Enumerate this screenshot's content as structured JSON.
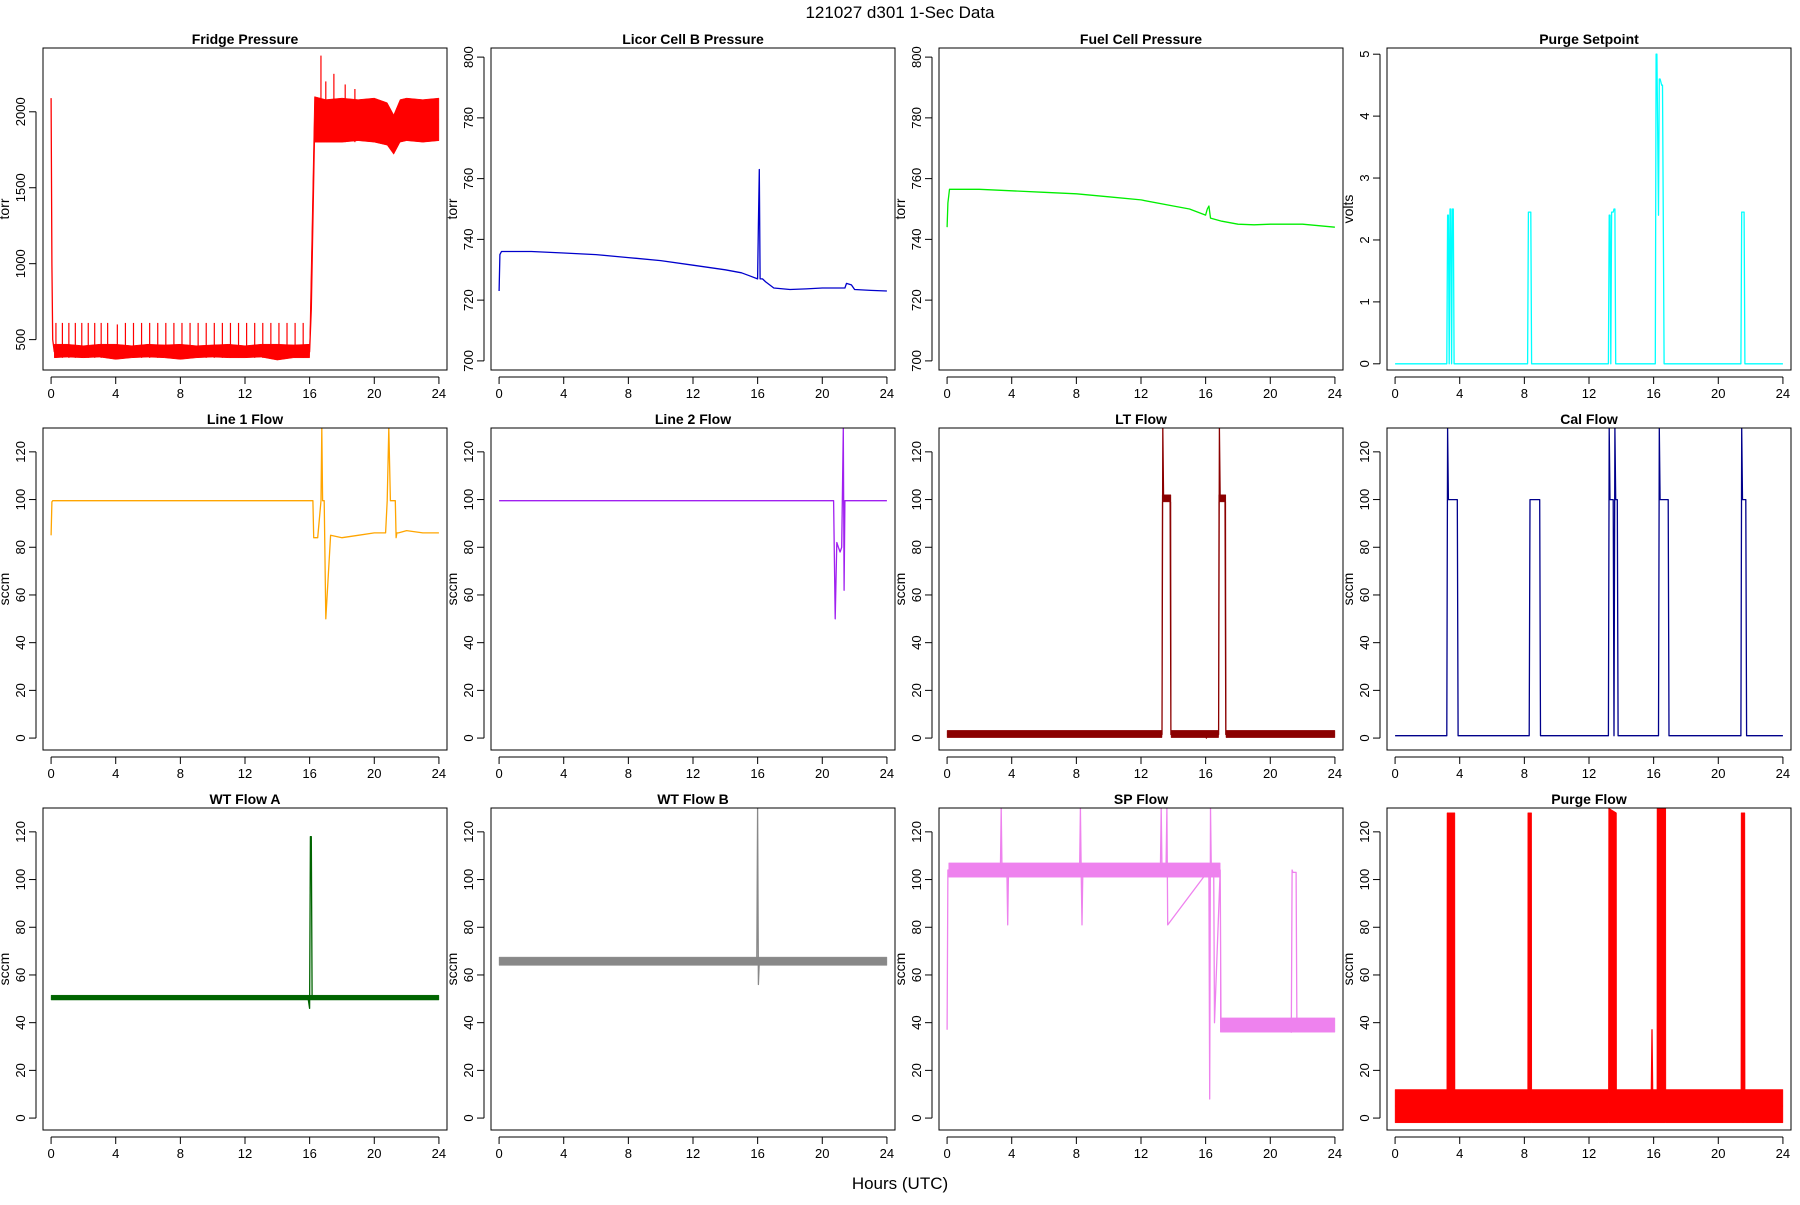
{
  "page": {
    "title": "121027   d301   1-Sec Data",
    "xlabel": "Hours (UTC)"
  },
  "chart_data": [
    {
      "type": "line",
      "title": "Fridge Pressure",
      "ylabel": "torr",
      "color": "#ff0000",
      "xlim": [
        -0.5,
        24.5
      ],
      "ylim": [
        300,
        2420
      ],
      "xticks": [
        0,
        4,
        8,
        12,
        16,
        20,
        24
      ],
      "yticks": [
        500,
        1000,
        1500,
        2000
      ],
      "x": [
        0,
        0.05,
        0.1,
        0.2,
        1,
        2,
        3,
        3.5,
        4,
        5,
        6,
        7,
        8,
        8.5,
        9,
        10,
        11,
        12,
        13,
        13.5,
        14,
        15,
        16,
        16.1,
        16.3,
        16.6,
        17,
        18,
        19,
        20,
        20.5,
        21,
        21.5,
        22,
        23,
        24
      ],
      "y": [
        2090,
        1000,
        500,
        420,
        420,
        415,
        420,
        380,
        410,
        420,
        420,
        418,
        400,
        380,
        410,
        420,
        418,
        420,
        420,
        380,
        410,
        420,
        420,
        700,
        1850,
        2000,
        1930,
        1950,
        1940,
        1950,
        1900,
        1800,
        1850,
        1950,
        1960,
        1950
      ],
      "band": {
        "x": [
          0.2,
          1,
          2,
          3,
          4,
          5,
          6,
          7,
          8,
          9,
          10,
          11,
          12,
          13,
          14,
          15,
          16,
          16.3,
          17,
          18,
          19,
          20,
          20.8,
          21.2,
          21.6,
          22,
          23,
          24
        ],
        "lo": [
          380,
          385,
          380,
          385,
          370,
          380,
          385,
          380,
          370,
          380,
          385,
          380,
          380,
          385,
          365,
          380,
          380,
          1800,
          1800,
          1800,
          1810,
          1800,
          1780,
          1720,
          1800,
          1810,
          1800,
          1810
        ],
        "hi": [
          470,
          470,
          460,
          470,
          470,
          460,
          470,
          465,
          470,
          460,
          465,
          470,
          460,
          470,
          470,
          465,
          470,
          2100,
          2080,
          2090,
          2080,
          2090,
          2060,
          1980,
          2080,
          2090,
          2080,
          2090
        ]
      },
      "spikes": [
        [
          0.3,
          380,
          610
        ],
        [
          0.7,
          380,
          610
        ],
        [
          1.1,
          380,
          610
        ],
        [
          1.5,
          380,
          610
        ],
        [
          1.9,
          380,
          610
        ],
        [
          2.3,
          380,
          610
        ],
        [
          2.7,
          380,
          610
        ],
        [
          3.1,
          380,
          610
        ],
        [
          3.5,
          380,
          610
        ],
        [
          4.1,
          380,
          600
        ],
        [
          4.6,
          380,
          610
        ],
        [
          5.1,
          380,
          610
        ],
        [
          5.6,
          380,
          610
        ],
        [
          6.1,
          380,
          610
        ],
        [
          6.6,
          380,
          610
        ],
        [
          7.1,
          380,
          610
        ],
        [
          7.6,
          380,
          610
        ],
        [
          8.1,
          380,
          610
        ],
        [
          8.6,
          380,
          610
        ],
        [
          9.1,
          380,
          610
        ],
        [
          9.6,
          380,
          610
        ],
        [
          10.1,
          380,
          610
        ],
        [
          10.6,
          380,
          610
        ],
        [
          11.1,
          380,
          610
        ],
        [
          11.6,
          380,
          610
        ],
        [
          12.1,
          380,
          610
        ],
        [
          12.6,
          380,
          610
        ],
        [
          13.1,
          380,
          610
        ],
        [
          13.6,
          380,
          610
        ],
        [
          14.1,
          380,
          610
        ],
        [
          14.6,
          380,
          610
        ],
        [
          15.1,
          380,
          610
        ],
        [
          15.6,
          380,
          610
        ],
        [
          16.7,
          1800,
          2370
        ],
        [
          17.0,
          1800,
          2200
        ],
        [
          17.5,
          1800,
          2250
        ],
        [
          18.2,
          1800,
          2180
        ],
        [
          18.8,
          1800,
          2150
        ]
      ]
    },
    {
      "type": "line",
      "title": "Licor Cell B Pressure",
      "ylabel": "torr",
      "color": "#0000cc",
      "xlim": [
        -0.5,
        24.5
      ],
      "ylim": [
        697,
        803
      ],
      "xticks": [
        0,
        4,
        8,
        12,
        16,
        20,
        24
      ],
      "yticks": [
        700,
        720,
        740,
        760,
        780,
        800
      ],
      "x": [
        0,
        0.05,
        0.15,
        2,
        4,
        6,
        8,
        10,
        12,
        14,
        15,
        15.5,
        16,
        16.05,
        16.1,
        16.15,
        16.3,
        16.5,
        17,
        18,
        19,
        20,
        21,
        21.4,
        21.5,
        21.8,
        22,
        23,
        24
      ],
      "y": [
        723,
        735,
        736,
        736,
        735.5,
        735,
        734,
        733,
        731.5,
        730,
        729,
        728,
        727,
        745,
        763,
        727,
        727,
        726,
        724,
        723.5,
        723.7,
        724,
        724,
        724,
        725.5,
        725,
        723.5,
        723.2,
        723
      ]
    },
    {
      "type": "line",
      "title": "Fuel Cell Pressure",
      "ylabel": "torr",
      "color": "#00ee00",
      "xlim": [
        -0.5,
        24.5
      ],
      "ylim": [
        697,
        803
      ],
      "xticks": [
        0,
        4,
        8,
        12,
        16,
        20,
        24
      ],
      "yticks": [
        700,
        720,
        740,
        760,
        780,
        800
      ],
      "x": [
        0,
        0.05,
        0.15,
        2,
        4,
        6,
        8,
        10,
        12,
        14,
        15,
        16,
        16.1,
        16.2,
        16.3,
        17,
        18,
        19,
        20,
        21,
        22,
        23,
        24
      ],
      "y": [
        744,
        752,
        756.5,
        756.5,
        756,
        755.5,
        755,
        754,
        753,
        751,
        750,
        748,
        750,
        751,
        747,
        746,
        745,
        744.8,
        745,
        745,
        745,
        744.5,
        744
      ]
    },
    {
      "type": "line",
      "title": "Purge Setpoint",
      "ylabel": "volts",
      "color": "#00ffff",
      "xlim": [
        -0.5,
        24.5
      ],
      "ylim": [
        -0.1,
        5.1
      ],
      "xticks": [
        0,
        4,
        8,
        12,
        16,
        20,
        24
      ],
      "yticks": [
        0,
        1,
        2,
        3,
        4,
        5
      ],
      "x": [
        0,
        3.2,
        3.25,
        3.3,
        3.35,
        3.4,
        3.45,
        3.5,
        3.55,
        3.6,
        3.65,
        8.2,
        8.25,
        8.35,
        8.4,
        8.45,
        13.2,
        13.25,
        13.3,
        13.35,
        13.4,
        13.5,
        13.55,
        13.6,
        13.65,
        16.1,
        16.15,
        16.2,
        16.3,
        16.35,
        16.4,
        16.5,
        16.55,
        16.6,
        16.65,
        21.4,
        21.45,
        21.55,
        21.6,
        21.65,
        24
      ],
      "y": [
        0,
        0,
        2.4,
        2.4,
        0,
        2.5,
        2.5,
        0,
        2.5,
        2.5,
        0,
        0,
        2.45,
        2.45,
        2.45,
        0,
        0,
        2.4,
        2.4,
        0,
        2.45,
        2.45,
        2.5,
        2.5,
        0,
        0,
        5,
        5,
        2.4,
        4.6,
        4.6,
        4.5,
        4.5,
        2.3,
        0,
        0,
        2.45,
        2.45,
        2.45,
        0,
        0
      ]
    },
    {
      "type": "line",
      "title": "Line 1 Flow",
      "ylabel": "sccm",
      "color": "#ffa500",
      "xlim": [
        -0.5,
        24.5
      ],
      "ylim": [
        -5,
        130
      ],
      "xticks": [
        0,
        4,
        8,
        12,
        16,
        20,
        24
      ],
      "yticks": [
        0,
        20,
        40,
        60,
        80,
        100,
        120
      ],
      "x": [
        0,
        0.05,
        0.1,
        4,
        8,
        12,
        16,
        16.2,
        16.25,
        16.5,
        16.7,
        16.75,
        16.8,
        16.9,
        17,
        17.3,
        18,
        19,
        20,
        20.7,
        20.8,
        20.9,
        21,
        21.3,
        21.35,
        21.4,
        21.5,
        22,
        23,
        24
      ],
      "y": [
        85,
        99,
        99.5,
        99.5,
        99.5,
        99.5,
        99.5,
        99.5,
        84,
        84,
        99.5,
        130,
        99.5,
        99.5,
        50,
        85,
        84,
        85,
        86,
        86,
        99.5,
        130,
        99.5,
        99.5,
        84,
        86,
        86,
        87,
        86,
        86
      ]
    },
    {
      "type": "line",
      "title": "Line 2 Flow",
      "ylabel": "sccm",
      "color": "#a020f0",
      "xlim": [
        -0.5,
        24.5
      ],
      "ylim": [
        -5,
        130
      ],
      "xticks": [
        0,
        4,
        8,
        12,
        16,
        20,
        24
      ],
      "yticks": [
        0,
        20,
        40,
        60,
        80,
        100,
        120
      ],
      "x": [
        0,
        4,
        8,
        12,
        16,
        18,
        20,
        20.7,
        20.8,
        20.9,
        21.0,
        21.1,
        21.2,
        21.3,
        21.35,
        21.4,
        21.5,
        22,
        23,
        24
      ],
      "y": [
        99.5,
        99.5,
        99.5,
        99.5,
        99.5,
        99.5,
        99.5,
        99.5,
        50,
        82,
        80,
        78,
        80,
        130,
        62,
        99.5,
        99.5,
        99.5,
        99.5,
        99.5
      ]
    },
    {
      "type": "line",
      "title": "LT Flow",
      "ylabel": "sccm",
      "color": "#8b0000",
      "xlim": [
        -0.5,
        24.5
      ],
      "ylim": [
        -5,
        130
      ],
      "xticks": [
        0,
        4,
        8,
        12,
        16,
        20,
        24
      ],
      "yticks": [
        0,
        20,
        40,
        60,
        80,
        100,
        120
      ],
      "x": [
        0,
        13.3,
        13.35,
        13.4,
        13.45,
        13.8,
        13.85,
        16.0,
        16.05,
        16.1,
        16.2,
        16.8,
        16.85,
        16.9,
        16.95,
        17.2,
        17.25,
        24
      ],
      "y": [
        1.5,
        1.5,
        130,
        100,
        101,
        101,
        1.5,
        1.5,
        0,
        1.5,
        1.5,
        1.5,
        130,
        100,
        101,
        101,
        1.5,
        1.5
      ],
      "band": {
        "x": [
          0,
          13.3,
          13.31,
          13.85,
          13.86,
          16.8,
          16.81,
          17.25,
          17.26,
          24
        ],
        "lo": [
          0.2,
          0.2,
          99,
          99,
          0.2,
          0.2,
          99,
          99,
          0.2,
          0.2
        ],
        "hi": [
          3.2,
          3.2,
          102,
          102,
          3.2,
          3.2,
          102,
          102,
          3.2,
          3.2
        ]
      }
    },
    {
      "type": "line",
      "title": "Cal Flow",
      "ylabel": "sccm",
      "color": "#00008b",
      "xlim": [
        -0.5,
        24.5
      ],
      "ylim": [
        -5,
        130
      ],
      "xticks": [
        0,
        4,
        8,
        12,
        16,
        20,
        24
      ],
      "yticks": [
        0,
        20,
        40,
        60,
        80,
        100,
        120
      ],
      "x": [
        0,
        3.2,
        3.25,
        3.3,
        3.4,
        3.85,
        3.9,
        8.3,
        8.35,
        8.4,
        8.95,
        9.0,
        13.2,
        13.25,
        13.3,
        13.5,
        13.55,
        13.6,
        13.65,
        13.7,
        13.75,
        13.8,
        16.3,
        16.35,
        16.4,
        16.9,
        16.95,
        21.4,
        21.45,
        21.5,
        21.7,
        21.75,
        24
      ],
      "y": [
        1,
        1,
        130,
        100,
        100,
        100,
        1,
        1,
        100,
        100,
        100,
        1,
        1,
        130,
        100,
        100,
        1,
        130,
        100,
        100,
        100,
        1,
        1,
        130,
        100,
        100,
        1,
        1,
        130,
        100,
        100,
        1,
        1
      ]
    },
    {
      "type": "line",
      "title": "WT Flow A",
      "ylabel": "sccm",
      "color": "#006400",
      "xlim": [
        -0.5,
        24.5
      ],
      "ylim": [
        -5,
        130
      ],
      "xticks": [
        0,
        4,
        8,
        12,
        16,
        20,
        24
      ],
      "yticks": [
        0,
        20,
        40,
        60,
        80,
        100,
        120
      ],
      "x": [
        0,
        4,
        8,
        12,
        15.9,
        16.0,
        16.05,
        16.1,
        16.15,
        16.3,
        20,
        24
      ],
      "y": [
        50.5,
        50.5,
        50.5,
        50.5,
        50.5,
        46,
        118,
        118,
        50.5,
        50.5,
        50.8,
        50.5
      ],
      "band": {
        "x": [
          0,
          24
        ],
        "lo": [
          49.5,
          49.5
        ],
        "hi": [
          51.5,
          51.5
        ]
      }
    },
    {
      "type": "line",
      "title": "WT Flow B",
      "ylabel": "sccm",
      "color": "#888888",
      "xlim": [
        -0.5,
        24.5
      ],
      "ylim": [
        -5,
        130
      ],
      "xticks": [
        0,
        4,
        8,
        12,
        16,
        20,
        24
      ],
      "yticks": [
        0,
        20,
        40,
        60,
        80,
        100,
        120
      ],
      "x": [
        0,
        4,
        8,
        12,
        14.8,
        15,
        15.95,
        16.0,
        16.05,
        16.1,
        16.2,
        19,
        20,
        24
      ],
      "y": [
        66,
        66,
        65.5,
        65.5,
        65.5,
        66,
        66,
        130,
        56,
        66,
        66,
        66,
        65.5,
        65.5
      ],
      "band": {
        "x": [
          0,
          24
        ],
        "lo": [
          64,
          64
        ],
        "hi": [
          67.5,
          67.5
        ]
      }
    },
    {
      "type": "line",
      "title": "SP Flow",
      "ylabel": "sccm",
      "color": "#ee82ee",
      "xlim": [
        -0.5,
        24.5
      ],
      "ylim": [
        -5,
        130
      ],
      "xticks": [
        0,
        4,
        8,
        12,
        16,
        20,
        24
      ],
      "yticks": [
        0,
        20,
        40,
        60,
        80,
        100,
        120
      ],
      "x": [
        0,
        0.05,
        0.1,
        3.3,
        3.35,
        3.4,
        3.7,
        3.75,
        3.8,
        8.2,
        8.25,
        8.3,
        8.35,
        8.4,
        13.2,
        13.25,
        13.3,
        13.55,
        13.6,
        13.65,
        16.2,
        16.25,
        16.3,
        16.35,
        16.5,
        16.55,
        16.9,
        16.95,
        17,
        18,
        19,
        20,
        21,
        21.3,
        21.35,
        21.4,
        21.6,
        21.65,
        22,
        23,
        24
      ],
      "y": [
        37,
        104,
        104,
        104,
        130,
        104,
        104,
        81,
        104,
        103,
        130,
        103,
        81,
        103,
        104,
        130,
        104,
        104,
        130,
        81,
        104,
        8,
        130,
        104,
        104,
        40,
        104,
        40,
        39,
        39,
        38,
        38,
        37,
        36,
        104,
        103,
        103,
        38,
        39,
        39,
        39
      ],
      "band": {
        "x": [
          0.1,
          16.2,
          16.21,
          16.9,
          16.91,
          24
        ],
        "lo": [
          101,
          101,
          101,
          101,
          36,
          36
        ],
        "hi": [
          107,
          107,
          107,
          107,
          42,
          42
        ]
      }
    },
    {
      "type": "line",
      "title": "Purge Flow",
      "ylabel": "sccm",
      "color": "#ff0000",
      "xlim": [
        -0.5,
        24.5
      ],
      "ylim": [
        -5,
        130
      ],
      "xticks": [
        0,
        4,
        8,
        12,
        16,
        20,
        24
      ],
      "yticks": [
        0,
        20,
        40,
        60,
        80,
        100,
        120
      ],
      "x": [
        0,
        15.85,
        15.9,
        15.95,
        24
      ],
      "y": [
        5,
        5,
        37,
        5,
        5
      ],
      "band": {
        "x": [
          0,
          3.2,
          3.21,
          3.7,
          3.71,
          8.2,
          8.21,
          8.45,
          8.46,
          13.2,
          13.21,
          13.7,
          13.71,
          16.2,
          16.21,
          16.75,
          16.76,
          21.4,
          21.41,
          21.65,
          21.66,
          24
        ],
        "lo": [
          -2,
          -2,
          -2,
          -2,
          -2,
          -2,
          -2,
          -2,
          -2,
          -2,
          -2,
          -2,
          -2,
          -2,
          -2,
          -2,
          -2,
          -2,
          -2,
          -2,
          -2,
          -2
        ],
        "hi": [
          12,
          12,
          128,
          128,
          12,
          12,
          128,
          128,
          12,
          12,
          130,
          128,
          12,
          12,
          130,
          130,
          12,
          12,
          128,
          128,
          12,
          12
        ]
      }
    }
  ]
}
